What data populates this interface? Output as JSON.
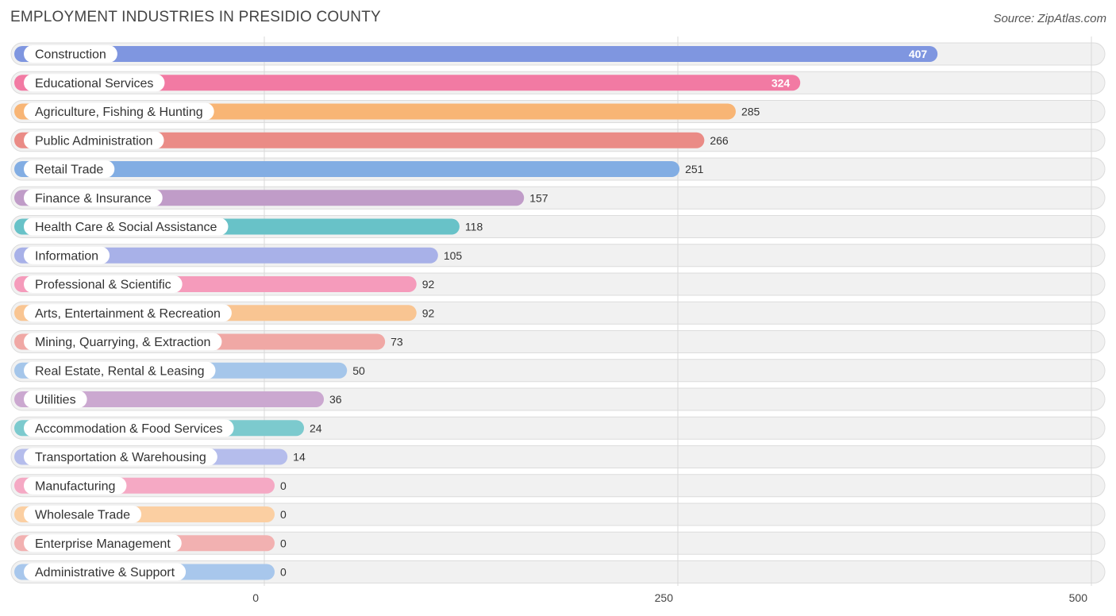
{
  "title": "EMPLOYMENT INDUSTRIES IN PRESIDIO COUNTY",
  "source": "Source: ZipAtlas.com",
  "chart_data": {
    "type": "bar",
    "orientation": "horizontal",
    "title": "EMPLOYMENT INDUSTRIES IN PRESIDIO COUNTY",
    "xlim": [
      0,
      500
    ],
    "ticks": [
      0,
      250,
      500
    ],
    "categories": [
      "Construction",
      "Educational Services",
      "Agriculture, Fishing & Hunting",
      "Public Administration",
      "Retail Trade",
      "Finance & Insurance",
      "Health Care & Social Assistance",
      "Information",
      "Professional & Scientific",
      "Arts, Entertainment & Recreation",
      "Mining, Quarrying, & Extraction",
      "Real Estate, Rental & Leasing",
      "Utilities",
      "Accommodation & Food Services",
      "Transportation & Warehousing",
      "Manufacturing",
      "Wholesale Trade",
      "Enterprise Management",
      "Administrative & Support"
    ],
    "values": [
      407,
      324,
      285,
      266,
      251,
      157,
      118,
      105,
      92,
      92,
      73,
      50,
      36,
      24,
      14,
      0,
      0,
      0,
      0
    ],
    "colors": [
      "#7f96e0",
      "#f27aa3",
      "#f8b575",
      "#ea8b86",
      "#82ade3",
      "#c09cc8",
      "#68c2c8",
      "#a8b1e8",
      "#f59bbb",
      "#f9c592",
      "#f0a8a5",
      "#a5c6ea",
      "#cba8d0",
      "#7ccace",
      "#b5bdec",
      "#f5a9c4",
      "#fbcfa2",
      "#f2b1b1",
      "#a8c7ec"
    ]
  }
}
